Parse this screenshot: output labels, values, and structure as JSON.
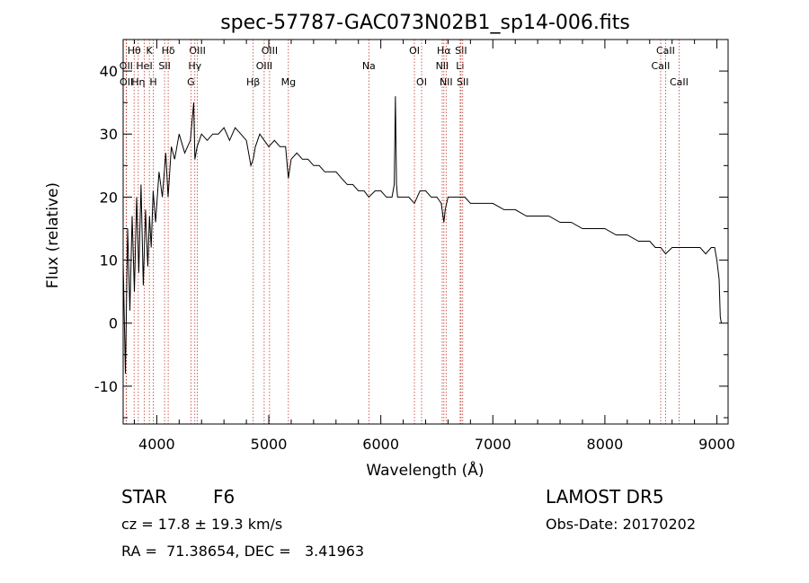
{
  "chart_data": {
    "type": "line",
    "title": "spec-57787-GAC073N02B1_sp14-006.fits",
    "xlabel": "Wavelength (Å)",
    "ylabel": "Flux (relative)",
    "xlim": [
      3700,
      9100
    ],
    "ylim": [
      -16,
      45
    ],
    "xticks": [
      4000,
      5000,
      6000,
      7000,
      8000,
      9000
    ],
    "yticks": [
      -10,
      0,
      10,
      20,
      30,
      40
    ],
    "grid": false,
    "series": [
      {
        "x": [
          3700,
          3720,
          3740,
          3760,
          3780,
          3800,
          3820,
          3840,
          3860,
          3880,
          3900,
          3920,
          3935,
          3950,
          3968,
          3990,
          4020,
          4050,
          4080,
          4101,
          4130,
          4160,
          4200,
          4250,
          4300,
          4330,
          4340,
          4360,
          4400,
          4450,
          4500,
          4550,
          4600,
          4650,
          4700,
          4750,
          4800,
          4840,
          4861,
          4880,
          4920,
          4960,
          5000,
          5050,
          5100,
          5150,
          5175,
          5200,
          5250,
          5300,
          5350,
          5400,
          5450,
          5500,
          5550,
          5600,
          5650,
          5700,
          5750,
          5800,
          5850,
          5893,
          5950,
          6000,
          6050,
          6100,
          6120,
          6130,
          6140,
          6150,
          6170,
          6200,
          6250,
          6300,
          6350,
          6400,
          6450,
          6500,
          6540,
          6555,
          6563,
          6575,
          6600,
          6650,
          6700,
          6750,
          6800,
          6900,
          7000,
          7100,
          7200,
          7300,
          7400,
          7500,
          7600,
          7700,
          7800,
          7900,
          8000,
          8100,
          8200,
          8300,
          8400,
          8450,
          8498,
          8542,
          8600,
          8662,
          8700,
          8800,
          8850,
          8900,
          8950,
          8980,
          9000,
          9020,
          9030,
          9040
        ],
        "y": [
          10,
          -8,
          15,
          2,
          17,
          5,
          20,
          8,
          22,
          6,
          18,
          9,
          17,
          12,
          21,
          16,
          24,
          20,
          27,
          20,
          28,
          26,
          30,
          27,
          29,
          35,
          26,
          28,
          30,
          29,
          30,
          30,
          31,
          29,
          31,
          30,
          29,
          25,
          26,
          28,
          30,
          29,
          28,
          29,
          28,
          28,
          23,
          26,
          27,
          26,
          26,
          25,
          25,
          24,
          24,
          24,
          23,
          22,
          22,
          21,
          21,
          20,
          21,
          21,
          20,
          20,
          22,
          36,
          22,
          20,
          20,
          20,
          20,
          19,
          21,
          21,
          20,
          20,
          19,
          17,
          16,
          18,
          20,
          20,
          20,
          20,
          19,
          19,
          19,
          18,
          18,
          17,
          17,
          17,
          16,
          16,
          15,
          15,
          15,
          14,
          14,
          13,
          13,
          12,
          12,
          11,
          12,
          12,
          12,
          12,
          12,
          11,
          12,
          12,
          10,
          7,
          1,
          0
        ]
      }
    ],
    "line_markers": [
      {
        "label": "Hθ",
        "x": 3798,
        "row": 1
      },
      {
        "label": "K",
        "x": 3934,
        "row": 1
      },
      {
        "label": "Hδ",
        "x": 4102,
        "row": 1
      },
      {
        "label": "OIII",
        "x": 4363,
        "row": 1
      },
      {
        "label": "OIII",
        "x": 5007,
        "row": 1
      },
      {
        "label": "OI",
        "x": 6300,
        "row": 1
      },
      {
        "label": "Hα",
        "x": 6563,
        "row": 1
      },
      {
        "label": "SII",
        "x": 6716,
        "row": 1
      },
      {
        "label": "CaII",
        "x": 8542,
        "row": 1
      },
      {
        "label": "OII",
        "x": 3727,
        "row": 2
      },
      {
        "label": "HeI",
        "x": 3889,
        "row": 2
      },
      {
        "label": "SII",
        "x": 4070,
        "row": 2
      },
      {
        "label": "Hγ",
        "x": 4340,
        "row": 2
      },
      {
        "label": "OIII",
        "x": 4959,
        "row": 2
      },
      {
        "label": "Na",
        "x": 5893,
        "row": 2
      },
      {
        "label": "NII",
        "x": 6548,
        "row": 2
      },
      {
        "label": "Li",
        "x": 6708,
        "row": 2
      },
      {
        "label": "CaII",
        "x": 8498,
        "row": 2
      },
      {
        "label": "OII",
        "x": 3729,
        "row": 3
      },
      {
        "label": "Hη",
        "x": 3835,
        "row": 3
      },
      {
        "label": "H",
        "x": 3969,
        "row": 3
      },
      {
        "label": "G",
        "x": 4305,
        "row": 3
      },
      {
        "label": "Hβ",
        "x": 4861,
        "row": 3
      },
      {
        "label": "Mg",
        "x": 5175,
        "row": 3
      },
      {
        "label": "OI",
        "x": 6364,
        "row": 3
      },
      {
        "label": "NII",
        "x": 6583,
        "row": 3
      },
      {
        "label": "SII",
        "x": 6731,
        "row": 3
      },
      {
        "label": "CaII",
        "x": 8662,
        "row": 3
      }
    ]
  },
  "info": {
    "object_class": "STAR",
    "subclass": "F6",
    "survey": "LAMOST DR5",
    "cz": "cz = 17.8 ± 19.3 km/s",
    "obs_date": "Obs-Date: 20170202",
    "coords": "RA =  71.38654, DEC =   3.41963"
  }
}
